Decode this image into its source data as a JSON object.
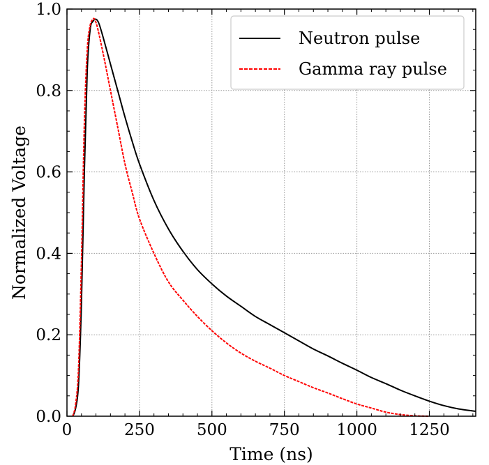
{
  "chart_data": {
    "type": "line",
    "title": "",
    "xlabel": "Time (ns)",
    "ylabel": "Normalized Voltage",
    "xlim": [
      0,
      1410
    ],
    "ylim": [
      0.0,
      1.0
    ],
    "grid": true,
    "legend_position": "top-right",
    "x_ticks": [
      {
        "value": 0,
        "label": "0"
      },
      {
        "value": 250,
        "label": "250"
      },
      {
        "value": 500,
        "label": "500"
      },
      {
        "value": 750,
        "label": "750"
      },
      {
        "value": 1000,
        "label": "1000"
      },
      {
        "value": 1250,
        "label": "1250"
      }
    ],
    "y_ticks": [
      {
        "value": 0.0,
        "label": "0.0"
      },
      {
        "value": 0.2,
        "label": "0.2"
      },
      {
        "value": 0.4,
        "label": "0.4"
      },
      {
        "value": 0.6,
        "label": "0.6"
      },
      {
        "value": 0.8,
        "label": "0.8"
      },
      {
        "value": 1.0,
        "label": "1.0"
      }
    ],
    "series": [
      {
        "name": "Neutron pulse",
        "color": "#000000",
        "style": "solid",
        "x": [
          20,
          30,
          40,
          50,
          60,
          70,
          80,
          90,
          100,
          110,
          125,
          150,
          175,
          200,
          225,
          250,
          300,
          350,
          400,
          450,
          500,
          550,
          600,
          650,
          700,
          750,
          800,
          850,
          900,
          950,
          1000,
          1050,
          1100,
          1150,
          1200,
          1250,
          1300,
          1350,
          1410
        ],
        "y": [
          0.0,
          0.02,
          0.08,
          0.28,
          0.6,
          0.85,
          0.95,
          0.97,
          0.975,
          0.965,
          0.93,
          0.865,
          0.8,
          0.735,
          0.675,
          0.62,
          0.53,
          0.46,
          0.405,
          0.36,
          0.325,
          0.295,
          0.27,
          0.245,
          0.225,
          0.205,
          0.185,
          0.165,
          0.148,
          0.13,
          0.113,
          0.095,
          0.08,
          0.064,
          0.05,
          0.037,
          0.026,
          0.018,
          0.012
        ]
      },
      {
        "name": "Gamma ray pulse",
        "color": "#ff0000",
        "style": "dashed",
        "x": [
          20,
          30,
          40,
          50,
          60,
          70,
          80,
          90,
          95,
          105,
          125,
          150,
          175,
          200,
          225,
          250,
          300,
          350,
          400,
          450,
          500,
          550,
          600,
          650,
          700,
          750,
          800,
          850,
          900,
          950,
          1000,
          1050,
          1100,
          1150,
          1200,
          1250
        ],
        "y": [
          0.0,
          0.03,
          0.12,
          0.38,
          0.72,
          0.9,
          0.96,
          0.975,
          0.975,
          0.955,
          0.89,
          0.8,
          0.71,
          0.62,
          0.55,
          0.485,
          0.4,
          0.33,
          0.285,
          0.245,
          0.21,
          0.18,
          0.155,
          0.135,
          0.118,
          0.1,
          0.085,
          0.07,
          0.057,
          0.043,
          0.03,
          0.02,
          0.01,
          0.004,
          0.001,
          0.0
        ]
      }
    ]
  }
}
